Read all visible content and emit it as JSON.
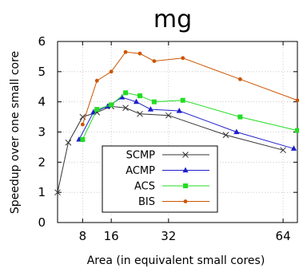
{
  "chart_data": {
    "type": "line",
    "title": "mg",
    "xlabel": "Area (in equivalent small cores)",
    "ylabel": "Speedup over one small core",
    "xlim": [
      1,
      68
    ],
    "ylim": [
      0,
      6
    ],
    "xticks": [
      8,
      16,
      32,
      64
    ],
    "yticks": [
      0,
      1,
      2,
      3,
      4,
      5,
      6
    ],
    "grid": true,
    "legend": "bottom-center",
    "series": [
      {
        "name": "SCMP",
        "color": "#333333",
        "marker": "x",
        "points": [
          [
            1,
            1.0
          ],
          [
            4,
            2.65
          ],
          [
            8,
            3.5
          ],
          [
            12,
            3.65
          ],
          [
            16,
            3.85
          ],
          [
            20,
            3.8
          ],
          [
            24,
            3.6
          ],
          [
            32,
            3.55
          ],
          [
            48,
            2.9
          ],
          [
            64,
            2.4
          ]
        ]
      },
      {
        "name": "ACMP",
        "color": "#1f1fcc",
        "marker": "triangle",
        "points": [
          [
            7,
            2.75
          ],
          [
            11,
            3.65
          ],
          [
            15,
            3.85
          ],
          [
            19,
            4.15
          ],
          [
            23,
            4.0
          ],
          [
            27,
            3.75
          ],
          [
            35,
            3.7
          ],
          [
            51,
            3.0
          ],
          [
            67,
            2.45
          ]
        ]
      },
      {
        "name": "ACS",
        "color": "#22dd22",
        "marker": "square",
        "points": [
          [
            8,
            2.75
          ],
          [
            12,
            3.75
          ],
          [
            16,
            3.9
          ],
          [
            20,
            4.3
          ],
          [
            24,
            4.2
          ],
          [
            28,
            4.0
          ],
          [
            36,
            4.05
          ],
          [
            52,
            3.5
          ],
          [
            68,
            3.05
          ]
        ]
      },
      {
        "name": "BIS",
        "color": "#cc5500",
        "marker": "circle",
        "points": [
          [
            8,
            3.25
          ],
          [
            12,
            4.7
          ],
          [
            16,
            5.0
          ],
          [
            20,
            5.65
          ],
          [
            24,
            5.6
          ],
          [
            28,
            5.35
          ],
          [
            36,
            5.45
          ],
          [
            52,
            4.75
          ],
          [
            68,
            4.05
          ]
        ]
      }
    ]
  }
}
